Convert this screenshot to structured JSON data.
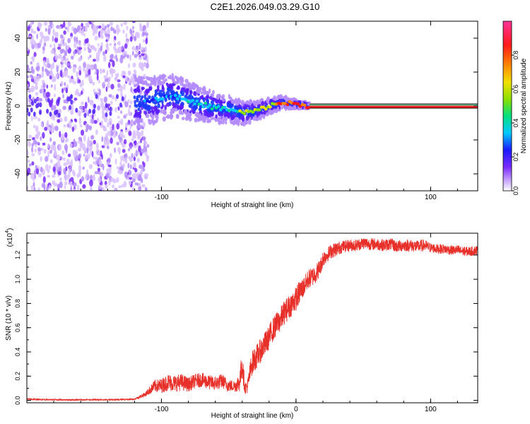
{
  "title": "C2E1.2026.049.03.29.G10",
  "colors": {
    "snr_line": "#e8302a",
    "spectrogram_cmap": [
      "#ffffff",
      "#c9a6ff",
      "#7a2cff",
      "#1a1aff",
      "#00c8ff",
      "#00e080",
      "#8ce000",
      "#f0e000",
      "#ff8800",
      "#ff1a1a",
      "#ff3399"
    ],
    "carrier_line": "#ff2020",
    "carrier_edge": "#00a050"
  },
  "chart_data": [
    {
      "type": "heatmap",
      "name": "spectrogram",
      "xlabel": "Height of straight line (km)",
      "ylabel": "Frequency (Hz)",
      "xlim": [
        -200,
        135
      ],
      "ylim": [
        -50,
        50
      ],
      "xticks": [
        -100,
        0,
        100
      ],
      "xtick_labels": [
        "-100",
        "",
        "100"
      ],
      "yticks": [
        -40,
        -20,
        0,
        20,
        40
      ],
      "ytick_labels": [
        "-40",
        "-20",
        "0",
        "20",
        "40"
      ],
      "colorbar": {
        "label": "Normalized spectral amplitude",
        "range": [
          0,
          1
        ],
        "ticks": [
          0.0,
          0.2,
          0.4,
          0.6,
          0.8
        ],
        "tick_labels": [
          "0.0",
          "0.2",
          "0.4",
          "0.6",
          "0.8"
        ]
      },
      "carrier_frequency_hz": 0,
      "noise_region_x": [
        -200,
        -110
      ],
      "carrier_trace": {
        "x": [
          -120,
          -110,
          -100,
          -90,
          -80,
          -70,
          -60,
          -50,
          -40,
          -30,
          -20,
          -10,
          0,
          10
        ],
        "y": [
          2,
          3,
          5,
          6,
          3,
          1,
          -1,
          -2,
          -4,
          -3,
          0,
          2,
          1,
          0
        ]
      }
    },
    {
      "type": "line",
      "name": "snr",
      "xlabel": "Height of straight line (km)",
      "ylabel": "SNR (10 * v/v)",
      "scale_label": "(x10",
      "scale_exponent": "4",
      "xlim": [
        -200,
        135
      ],
      "ylim": [
        -0.02,
        1.38
      ],
      "xticks": [
        -100,
        0,
        100
      ],
      "xtick_labels": [
        "-100",
        "0",
        "100"
      ],
      "yticks": [
        0.0,
        0.2,
        0.4,
        0.6,
        0.8,
        1.0,
        1.2
      ],
      "ytick_labels": [
        "0.0",
        "0.2",
        "0.4",
        "0.6",
        "0.8",
        "1.0",
        "1.2"
      ],
      "series": [
        {
          "name": "SNR",
          "x": [
            -200,
            -180,
            -160,
            -140,
            -120,
            -112,
            -105,
            -100,
            -95,
            -90,
            -85,
            -80,
            -75,
            -70,
            -65,
            -60,
            -55,
            -50,
            -45,
            -42,
            -40,
            -38,
            -36,
            -33,
            -30,
            -27,
            -24,
            -21,
            -18,
            -15,
            -12,
            -9,
            -6,
            -3,
            0,
            3,
            6,
            9,
            12,
            15,
            18,
            20,
            23,
            26,
            30,
            35,
            40,
            45,
            50,
            55,
            60,
            65,
            70,
            75,
            80,
            85,
            90,
            95,
            100,
            105,
            110,
            115,
            120,
            125,
            130,
            135
          ],
          "y": [
            0.01,
            0.005,
            0.005,
            0.005,
            0.01,
            0.05,
            0.12,
            0.12,
            0.15,
            0.14,
            0.15,
            0.13,
            0.16,
            0.17,
            0.15,
            0.14,
            0.16,
            0.12,
            0.12,
            0.15,
            0.3,
            0.1,
            0.12,
            0.3,
            0.35,
            0.4,
            0.45,
            0.5,
            0.57,
            0.62,
            0.66,
            0.72,
            0.76,
            0.8,
            0.84,
            0.9,
            0.94,
            1.0,
            1.02,
            1.05,
            1.1,
            1.17,
            1.2,
            1.23,
            1.25,
            1.27,
            1.28,
            1.28,
            1.3,
            1.29,
            1.29,
            1.28,
            1.29,
            1.27,
            1.28,
            1.28,
            1.27,
            1.28,
            1.26,
            1.25,
            1.25,
            1.24,
            1.24,
            1.23,
            1.23,
            1.24
          ],
          "noise_amplitude": [
            0.005,
            0.005,
            0.005,
            0.005,
            0.005,
            0.02,
            0.05,
            0.06,
            0.07,
            0.07,
            0.07,
            0.06,
            0.06,
            0.06,
            0.06,
            0.06,
            0.06,
            0.05,
            0.05,
            0.08,
            0.12,
            0.05,
            0.06,
            0.1,
            0.1,
            0.1,
            0.1,
            0.1,
            0.1,
            0.1,
            0.1,
            0.1,
            0.1,
            0.1,
            0.1,
            0.1,
            0.08,
            0.08,
            0.08,
            0.08,
            0.07,
            0.07,
            0.06,
            0.06,
            0.06,
            0.05,
            0.05,
            0.05,
            0.05,
            0.05,
            0.05,
            0.05,
            0.05,
            0.05,
            0.05,
            0.05,
            0.05,
            0.05,
            0.04,
            0.04,
            0.04,
            0.04,
            0.04,
            0.04,
            0.04,
            0.04
          ]
        }
      ]
    }
  ]
}
